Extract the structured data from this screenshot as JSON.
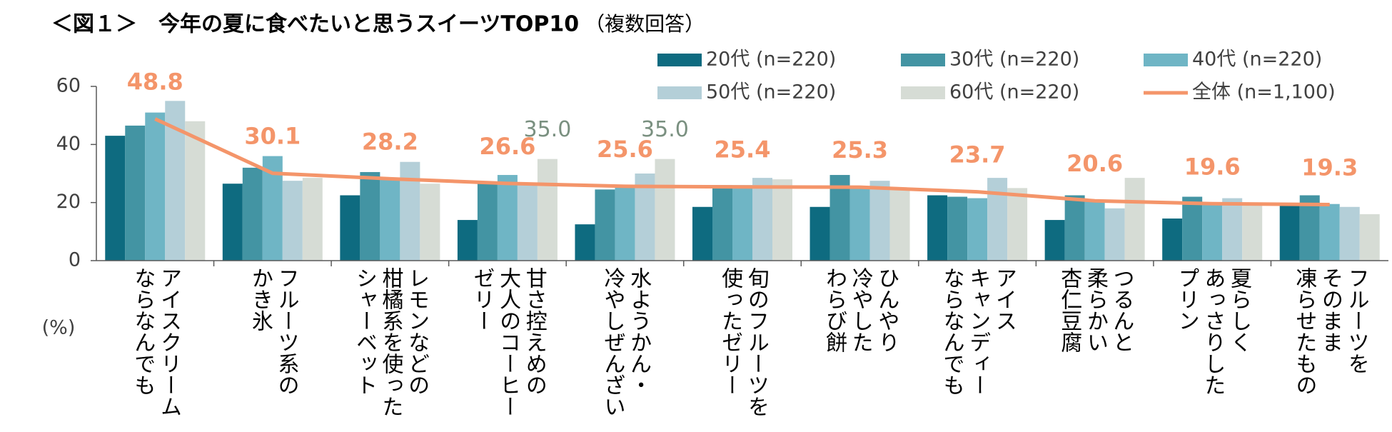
{
  "chart_data": {
    "type": "bar",
    "title": "＜図１＞　今年の夏に食べたいと思うスイーツTOP10",
    "subtitle": "（複数回答）",
    "y_label": "(%)",
    "categories": [
      "アイスクリーム\nならなんでも",
      "フルーツ系の\nかき氷",
      "レモンなどの\n柑橘系を使った\nシャーベット",
      "甘さ控えめの\n大人のコーヒー\nゼリー",
      "水ようかん・\n冷やしぜんざい",
      "旬のフルーツを\n使ったゼリー",
      "ひんやり\n冷やした\nわらび餅",
      "アイス\nキャンディー\nならなんでも",
      "つるんと\n柔らかい\n杏仁豆腐",
      "夏らしく\nあっさりした\nプリン",
      "フルーツを\nそのまま\n凍らせたもの"
    ],
    "series": [
      {
        "name": "20代 (n=220)",
        "color": "#0e6b80",
        "values": [
          43,
          26.5,
          22.5,
          14,
          12.5,
          18.5,
          18.5,
          22.5,
          14,
          14.5,
          19.5
        ]
      },
      {
        "name": "30代 (n=220)",
        "color": "#4394a3",
        "values": [
          46.5,
          32,
          30.5,
          26.5,
          24.5,
          26,
          29.5,
          22,
          22.5,
          22,
          22.5
        ]
      },
      {
        "name": "40代 (n=220)",
        "color": "#6fb5c5",
        "values": [
          51,
          36,
          28,
          29.5,
          26,
          26,
          25.5,
          21.5,
          21,
          19.5,
          19.5
        ]
      },
      {
        "name": "50代 (n=220)",
        "color": "#b4cfd8",
        "values": [
          55,
          27.5,
          34,
          26.5,
          30,
          28.5,
          27.5,
          28.5,
          18,
          21.5,
          18.5
        ]
      },
      {
        "name": "60代 (n=220)",
        "color": "#d6dcd5",
        "values": [
          48,
          28.5,
          26.5,
          35,
          35,
          28,
          25,
          25,
          28.5,
          19.5,
          16
        ],
        "value_labels": [
          null,
          null,
          null,
          "35.0",
          "35.0",
          null,
          null,
          null,
          null,
          null,
          null
        ],
        "label_color": "#7a9080"
      },
      {
        "name": "全体 (n=1,100)",
        "type": "line",
        "color": "#f4956a",
        "values": [
          48.8,
          30.1,
          28.2,
          26.6,
          25.6,
          25.4,
          25.3,
          23.7,
          20.6,
          19.6,
          19.3
        ]
      }
    ],
    "ylim": [
      0,
      60
    ],
    "yticks": [
      0,
      20,
      40,
      60
    ],
    "grid": false,
    "legend": "top-right"
  }
}
